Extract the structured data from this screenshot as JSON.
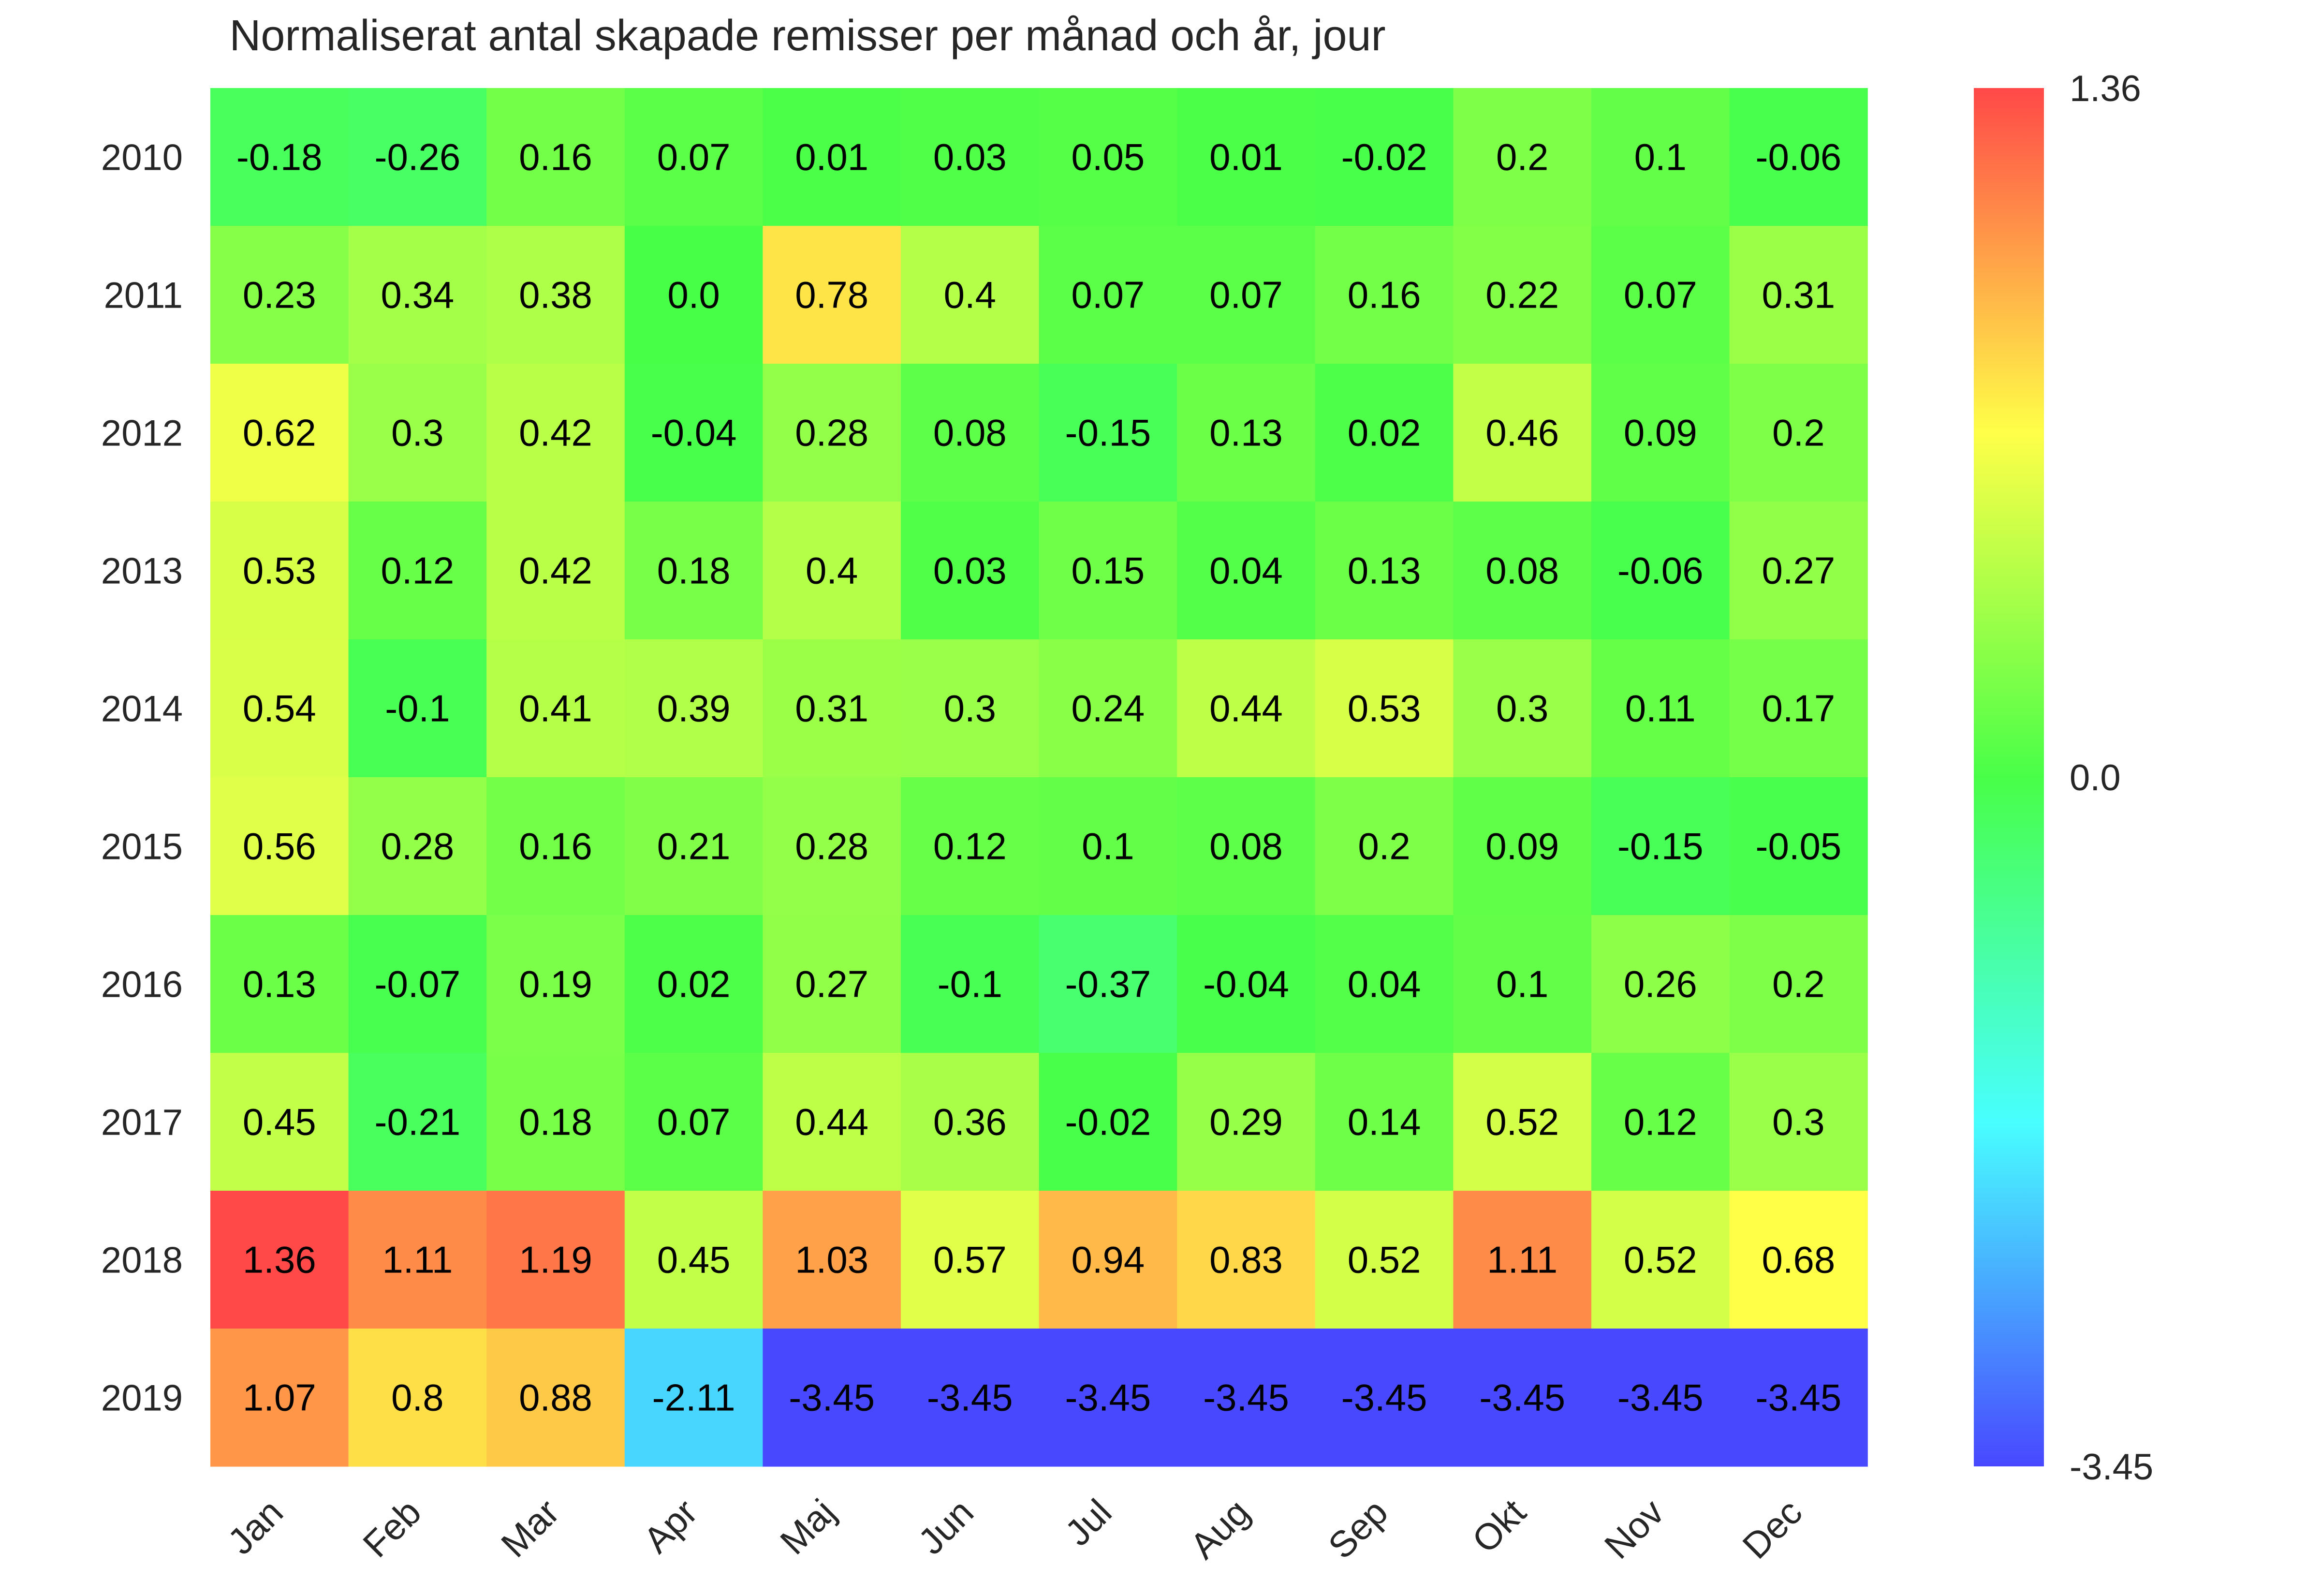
{
  "chart_data": {
    "type": "heatmap",
    "title": "Normaliserat antal skapade remisser per månad och år, jour",
    "xlabel": "",
    "ylabel": "",
    "x_categories": [
      "Jan",
      "Feb",
      "Mar",
      "Apr",
      "Maj",
      "Jun",
      "Jul",
      "Aug",
      "Sep",
      "Okt",
      "Nov",
      "Dec"
    ],
    "y_categories": [
      "2010",
      "2011",
      "2012",
      "2013",
      "2014",
      "2015",
      "2016",
      "2017",
      "2018",
      "2019"
    ],
    "values": [
      [
        -0.18,
        -0.26,
        0.16,
        0.07,
        0.01,
        0.03,
        0.05,
        0.01,
        -0.02,
        0.2,
        0.1,
        -0.06
      ],
      [
        0.23,
        0.34,
        0.38,
        0.0,
        0.78,
        0.4,
        0.07,
        0.07,
        0.16,
        0.22,
        0.07,
        0.31
      ],
      [
        0.62,
        0.3,
        0.42,
        -0.04,
        0.28,
        0.08,
        -0.15,
        0.13,
        0.02,
        0.46,
        0.09,
        0.2
      ],
      [
        0.53,
        0.12,
        0.42,
        0.18,
        0.4,
        0.03,
        0.15,
        0.04,
        0.13,
        0.08,
        -0.06,
        0.27
      ],
      [
        0.54,
        -0.1,
        0.41,
        0.39,
        0.31,
        0.3,
        0.24,
        0.44,
        0.53,
        0.3,
        0.11,
        0.17
      ],
      [
        0.56,
        0.28,
        0.16,
        0.21,
        0.28,
        0.12,
        0.1,
        0.08,
        0.2,
        0.09,
        -0.15,
        -0.05
      ],
      [
        0.13,
        -0.07,
        0.19,
        0.02,
        0.27,
        -0.1,
        -0.37,
        -0.04,
        0.04,
        0.1,
        0.26,
        0.2
      ],
      [
        0.45,
        -0.21,
        0.18,
        0.07,
        0.44,
        0.36,
        -0.02,
        0.29,
        0.14,
        0.52,
        0.12,
        0.3
      ],
      [
        1.36,
        1.11,
        1.19,
        0.45,
        1.03,
        0.57,
        0.94,
        0.83,
        0.52,
        1.11,
        0.52,
        0.68
      ],
      [
        1.07,
        0.8,
        0.88,
        -2.11,
        -3.45,
        -3.45,
        -3.45,
        -3.45,
        -3.45,
        -3.45,
        -3.45,
        -3.45
      ]
    ],
    "value_labels": [
      [
        "-0.18",
        "-0.26",
        "0.16",
        "0.07",
        "0.01",
        "0.03",
        "0.05",
        "0.01",
        "-0.02",
        "0.2",
        "0.1",
        "-0.06"
      ],
      [
        "0.23",
        "0.34",
        "0.38",
        "0.0",
        "0.78",
        "0.4",
        "0.07",
        "0.07",
        "0.16",
        "0.22",
        "0.07",
        "0.31"
      ],
      [
        "0.62",
        "0.3",
        "0.42",
        "-0.04",
        "0.28",
        "0.08",
        "-0.15",
        "0.13",
        "0.02",
        "0.46",
        "0.09",
        "0.2"
      ],
      [
        "0.53",
        "0.12",
        "0.42",
        "0.18",
        "0.4",
        "0.03",
        "0.15",
        "0.04",
        "0.13",
        "0.08",
        "-0.06",
        "0.27"
      ],
      [
        "0.54",
        "-0.1",
        "0.41",
        "0.39",
        "0.31",
        "0.3",
        "0.24",
        "0.44",
        "0.53",
        "0.3",
        "0.11",
        "0.17"
      ],
      [
        "0.56",
        "0.28",
        "0.16",
        "0.21",
        "0.28",
        "0.12",
        "0.1",
        "0.08",
        "0.2",
        "0.09",
        "-0.15",
        "-0.05"
      ],
      [
        "0.13",
        "-0.07",
        "0.19",
        "0.02",
        "0.27",
        "-0.1",
        "-0.37",
        "-0.04",
        "0.04",
        "0.1",
        "0.26",
        "0.2"
      ],
      [
        "0.45",
        "-0.21",
        "0.18",
        "0.07",
        "0.44",
        "0.36",
        "-0.02",
        "0.29",
        "0.14",
        "0.52",
        "0.12",
        "0.3"
      ],
      [
        "1.36",
        "1.11",
        "1.19",
        "0.45",
        "1.03",
        "0.57",
        "0.94",
        "0.83",
        "0.52",
        "1.11",
        "0.52",
        "0.68"
      ],
      [
        "1.07",
        "0.8",
        "0.88",
        "-2.11",
        "-3.45",
        "-3.45",
        "-3.45",
        "-3.45",
        "-3.45",
        "-3.45",
        "-3.45",
        "-3.45"
      ]
    ],
    "colorbar": {
      "min": -3.45,
      "max": 1.36,
      "center": 0.0,
      "ticks": [
        "1.36",
        "0.0",
        "-3.45"
      ],
      "tick_values": [
        1.36,
        0.0,
        -3.45
      ],
      "colormap_stops": [
        "#4848ff",
        "#48ffff",
        "#48ff48",
        "#ffff48",
        "#ff4848"
      ]
    },
    "grid": false,
    "legend": "colorbar-right"
  }
}
